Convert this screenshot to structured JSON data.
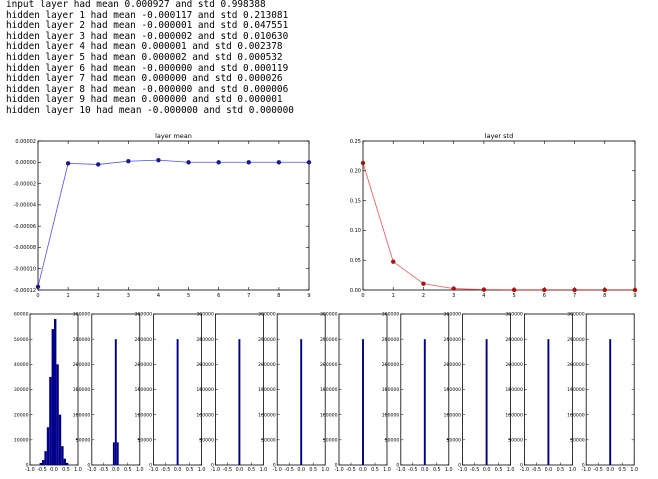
{
  "console_lines": [
    "input layer had mean 0.000927 and std 0.998388",
    "hidden layer 1 had mean -0.000117 and std 0.213081",
    "hidden layer 2 had mean -0.000001 and std 0.047551",
    "hidden layer 3 had mean -0.000002 and std 0.010630",
    "hidden layer 4 had mean 0.000001 and std 0.002378",
    "hidden layer 5 had mean 0.000002 and std 0.000532",
    "hidden layer 6 had mean -0.000000 and std 0.000119",
    "hidden layer 7 had mean 0.000000 and std 0.000026",
    "hidden layer 8 had mean -0.000000 and std 0.000006",
    "hidden layer 9 had mean 0.000000 and std 0.000001",
    "hidden layer 10 had mean -0.000000 and std 0.000000"
  ],
  "chart_data": [
    {
      "type": "line",
      "title": "layer mean",
      "x": [
        0,
        1,
        2,
        3,
        4,
        5,
        6,
        7,
        8,
        9
      ],
      "values": [
        -0.000117,
        -1e-06,
        -2e-06,
        1e-06,
        2e-06,
        0.0,
        0.0,
        0.0,
        0.0,
        0.0
      ],
      "xlim": [
        0,
        9
      ],
      "ylim": [
        -0.00012,
        2e-05
      ],
      "yticks": [
        -0.00012,
        -0.0001,
        -8e-05,
        -6e-05,
        -4e-05,
        -2e-05,
        0.0,
        2e-05
      ],
      "ytick_labels": [
        "-0.00012",
        "-0.00010",
        "-0.00008",
        "-0.00006",
        "-0.00004",
        "-0.00002",
        "0.00000",
        "0.00002"
      ],
      "xticks": [
        0,
        1,
        2,
        3,
        4,
        5,
        6,
        7,
        8,
        9
      ],
      "color": "#0000ff",
      "grid": false
    },
    {
      "type": "line",
      "title": "layer std",
      "x": [
        0,
        1,
        2,
        3,
        4,
        5,
        6,
        7,
        8,
        9
      ],
      "values": [
        0.213081,
        0.047551,
        0.01063,
        0.002378,
        0.000532,
        0.000119,
        2.6e-05,
        6e-06,
        1e-06,
        0.0
      ],
      "xlim": [
        0,
        9
      ],
      "ylim": [
        0,
        0.25
      ],
      "yticks": [
        0,
        0.05,
        0.1,
        0.15,
        0.2,
        0.25
      ],
      "ytick_labels": [
        "0.00",
        "0.05",
        "0.10",
        "0.15",
        "0.20",
        "0.25"
      ],
      "xticks": [
        0,
        1,
        2,
        3,
        4,
        5,
        6,
        7,
        8,
        9
      ],
      "color": "#ff0000",
      "grid": false
    },
    {
      "type": "bar",
      "title": "",
      "description_of_series": "histograms of activations per layer",
      "xlim": [
        -1,
        1
      ],
      "xtick_labels": [
        "-1.0",
        "-0.5",
        "0.0",
        "0.5",
        "1.0"
      ],
      "color": "#00008b",
      "panels": [
        {
          "ylim": [
            0,
            60000
          ],
          "yticks": [
            0,
            10000,
            20000,
            30000,
            40000,
            50000,
            60000
          ],
          "ytick_labels": [
            "0",
            "10000",
            "20000",
            "30000",
            "40000",
            "50000",
            "60000"
          ],
          "bins": [
            [
              -0.55,
              800
            ],
            [
              -0.45,
              2000
            ],
            [
              -0.35,
              5500
            ],
            [
              -0.25,
              15000
            ],
            [
              -0.15,
              35000
            ],
            [
              -0.05,
              54000
            ],
            [
              0.05,
              58000
            ],
            [
              0.15,
              40000
            ],
            [
              0.25,
              20000
            ],
            [
              0.35,
              7500
            ],
            [
              0.45,
              2500
            ],
            [
              0.55,
              800
            ]
          ]
        },
        {
          "ylim": [
            0,
            300000
          ],
          "yticks": [
            0,
            50000,
            100000,
            150000,
            200000,
            250000,
            300000
          ],
          "ytick_labels": [
            "0",
            "50000",
            "100000",
            "150000",
            "200000",
            "250000",
            "300000"
          ],
          "bins": [
            [
              -0.08,
              45000
            ],
            [
              0.0,
              250000
            ],
            [
              0.08,
              45000
            ]
          ]
        },
        {
          "ylim": [
            0,
            300000
          ],
          "yticks": [
            0,
            50000,
            100000,
            150000,
            200000,
            250000,
            300000
          ],
          "ytick_labels": [
            "0",
            "50000",
            "100000",
            "150000",
            "200000",
            "250000",
            "300000"
          ],
          "bins": [
            [
              0.0,
              250000
            ]
          ]
        },
        {
          "ylim": [
            0,
            300000
          ],
          "yticks": [
            0,
            50000,
            100000,
            150000,
            200000,
            250000,
            300000
          ],
          "ytick_labels": [
            "0",
            "50000",
            "100000",
            "150000",
            "200000",
            "250000",
            "300000"
          ],
          "bins": [
            [
              0.0,
              250000
            ]
          ]
        },
        {
          "ylim": [
            0,
            300000
          ],
          "yticks": [
            0,
            50000,
            100000,
            150000,
            200000,
            250000,
            300000
          ],
          "ytick_labels": [
            "0",
            "50000",
            "100000",
            "150000",
            "200000",
            "250000",
            "300000"
          ],
          "bins": [
            [
              0.0,
              250000
            ]
          ]
        },
        {
          "ylim": [
            0,
            300000
          ],
          "yticks": [
            0,
            50000,
            100000,
            150000,
            200000,
            250000,
            300000
          ],
          "ytick_labels": [
            "0",
            "50000",
            "100000",
            "150000",
            "200000",
            "250000",
            "300000"
          ],
          "bins": [
            [
              0.0,
              250000
            ]
          ]
        },
        {
          "ylim": [
            0,
            300000
          ],
          "yticks": [
            0,
            50000,
            100000,
            150000,
            200000,
            250000,
            300000
          ],
          "ytick_labels": [
            "0",
            "50000",
            "100000",
            "150000",
            "200000",
            "250000",
            "300000"
          ],
          "bins": [
            [
              0.0,
              250000
            ]
          ]
        },
        {
          "ylim": [
            0,
            300000
          ],
          "yticks": [
            0,
            50000,
            100000,
            150000,
            200000,
            250000,
            300000
          ],
          "ytick_labels": [
            "0",
            "50000",
            "100000",
            "150000",
            "200000",
            "250000",
            "300000"
          ],
          "bins": [
            [
              0.0,
              250000
            ]
          ]
        },
        {
          "ylim": [
            0,
            300000
          ],
          "yticks": [
            0,
            50000,
            100000,
            150000,
            200000,
            250000,
            300000
          ],
          "ytick_labels": [
            "0",
            "50000",
            "100000",
            "150000",
            "200000",
            "250000",
            "300000"
          ],
          "bins": [
            [
              0.0,
              250000
            ]
          ]
        },
        {
          "ylim": [
            0,
            300000
          ],
          "yticks": [
            0,
            50000,
            100000,
            150000,
            200000,
            250000,
            300000
          ],
          "ytick_labels": [
            "0",
            "50000",
            "100000",
            "150000",
            "200000",
            "250000",
            "300000"
          ],
          "bins": [
            [
              0.0,
              250000
            ]
          ]
        }
      ]
    }
  ]
}
